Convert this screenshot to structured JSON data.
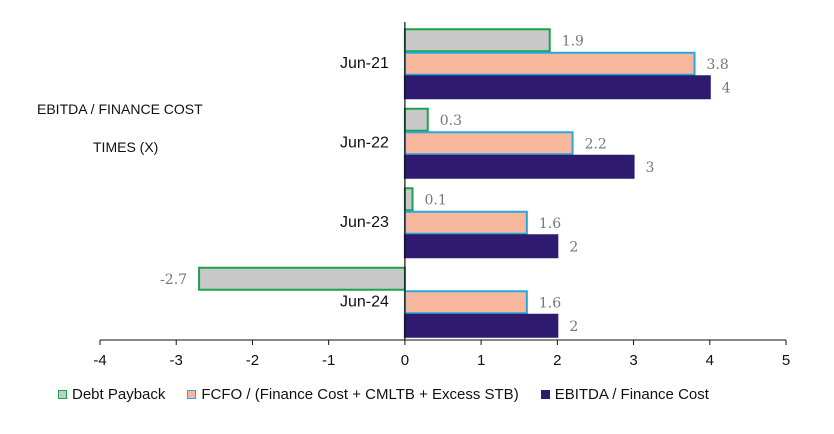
{
  "labels": {
    "ebitda_heading": "EBITDA / FINANCE COST",
    "times_heading": "TIMES (X)"
  },
  "chart_data": {
    "type": "bar",
    "orientation": "horizontal",
    "categories": [
      "Jun-21",
      "Jun-22",
      "Jun-23",
      "Jun-24"
    ],
    "series": [
      {
        "name": "Debt Payback",
        "values": [
          1.9,
          0.3,
          0.1,
          -2.7
        ],
        "fill": "#c8c8c8",
        "stroke": "#1aa34a"
      },
      {
        "name": "FCFO / (Finance Cost + CMLTB + Excess STB)",
        "values": [
          3.8,
          2.2,
          1.6,
          1.6
        ],
        "fill": "#f6b79c",
        "stroke": "#29a8e0"
      },
      {
        "name": "EBITDA / Finance Cost",
        "values": [
          4,
          3,
          2,
          2
        ],
        "fill": "#2e1a6e",
        "stroke": "#2e1a6e"
      }
    ],
    "xlim": [
      -4,
      5
    ],
    "xticks": [
      "-4",
      "-3",
      "-2",
      "-1",
      "0",
      "1",
      "2",
      "3",
      "4",
      "5"
    ],
    "grid": false,
    "legend": "bottom"
  }
}
